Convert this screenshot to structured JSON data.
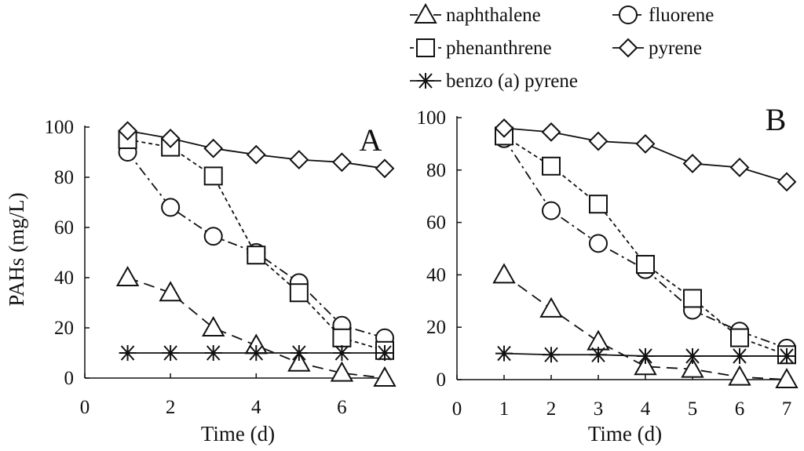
{
  "chart_data": [
    {
      "panel": "A",
      "type": "line",
      "title": "",
      "xlabel": "Time (d)",
      "ylabel": "PAHs (mg/L)",
      "xlim": [
        0,
        7
      ],
      "ylim": [
        0,
        100
      ],
      "xticks": [
        0,
        2,
        4,
        6
      ],
      "yticks": [
        0,
        20,
        40,
        60,
        80,
        100
      ],
      "series": [
        {
          "name": "naphthalene",
          "x": [
            1,
            2,
            3,
            4,
            5,
            6,
            7
          ],
          "values": [
            40,
            34,
            20,
            13,
            6,
            2,
            0
          ]
        },
        {
          "name": "fluorene",
          "x": [
            1,
            2,
            3,
            4,
            5,
            6,
            7
          ],
          "values": [
            90,
            68,
            56.5,
            50,
            38,
            21,
            16
          ]
        },
        {
          "name": "phenanthrene",
          "x": [
            1,
            2,
            3,
            4,
            5,
            6,
            7
          ],
          "values": [
            95,
            92,
            80.5,
            49,
            34,
            16,
            11
          ]
        },
        {
          "name": "pyrene",
          "x": [
            1,
            2,
            3,
            4,
            5,
            6,
            7
          ],
          "values": [
            98.5,
            95.5,
            91.5,
            89,
            87,
            86,
            83.5
          ]
        },
        {
          "name": "benzo (a) pyrene",
          "x": [
            1,
            2,
            3,
            4,
            5,
            6,
            7
          ],
          "values": [
            10,
            10,
            10,
            10,
            10,
            10,
            10
          ]
        }
      ]
    },
    {
      "panel": "B",
      "type": "line",
      "title": "",
      "xlabel": "Time (d)",
      "ylabel": "",
      "xlim": [
        0,
        7
      ],
      "ylim": [
        0,
        100
      ],
      "xticks": [
        0,
        1,
        2,
        3,
        4,
        5,
        6,
        7
      ],
      "yticks": [
        0,
        20,
        40,
        60,
        80,
        100
      ],
      "series": [
        {
          "name": "naphthalene",
          "x": [
            1,
            2,
            3,
            4,
            5,
            6,
            7
          ],
          "values": [
            40,
            27,
            14.5,
            5,
            4,
            1,
            0
          ]
        },
        {
          "name": "fluorene",
          "x": [
            1,
            2,
            3,
            4,
            5,
            6,
            7
          ],
          "values": [
            92,
            64.5,
            52,
            42,
            26.5,
            18.5,
            12
          ]
        },
        {
          "name": "phenanthrene",
          "x": [
            1,
            2,
            3,
            4,
            5,
            6,
            7
          ],
          "values": [
            93,
            81.5,
            67,
            44,
            31,
            16,
            9.5
          ]
        },
        {
          "name": "pyrene",
          "x": [
            1,
            2,
            3,
            4,
            5,
            6,
            7
          ],
          "values": [
            96,
            94.5,
            91,
            90,
            82.5,
            81,
            75.5
          ]
        },
        {
          "name": "benzo (a) pyrene",
          "x": [
            1,
            2,
            3,
            4,
            5,
            6,
            7
          ],
          "values": [
            10,
            9.5,
            9.5,
            9,
            9,
            9,
            9
          ]
        }
      ]
    }
  ],
  "legend": {
    "position": "top-right",
    "entries": [
      "naphthalene",
      "fluorene",
      "phenanthrene",
      "pyrene",
      "benzo (a) pyrene"
    ]
  }
}
